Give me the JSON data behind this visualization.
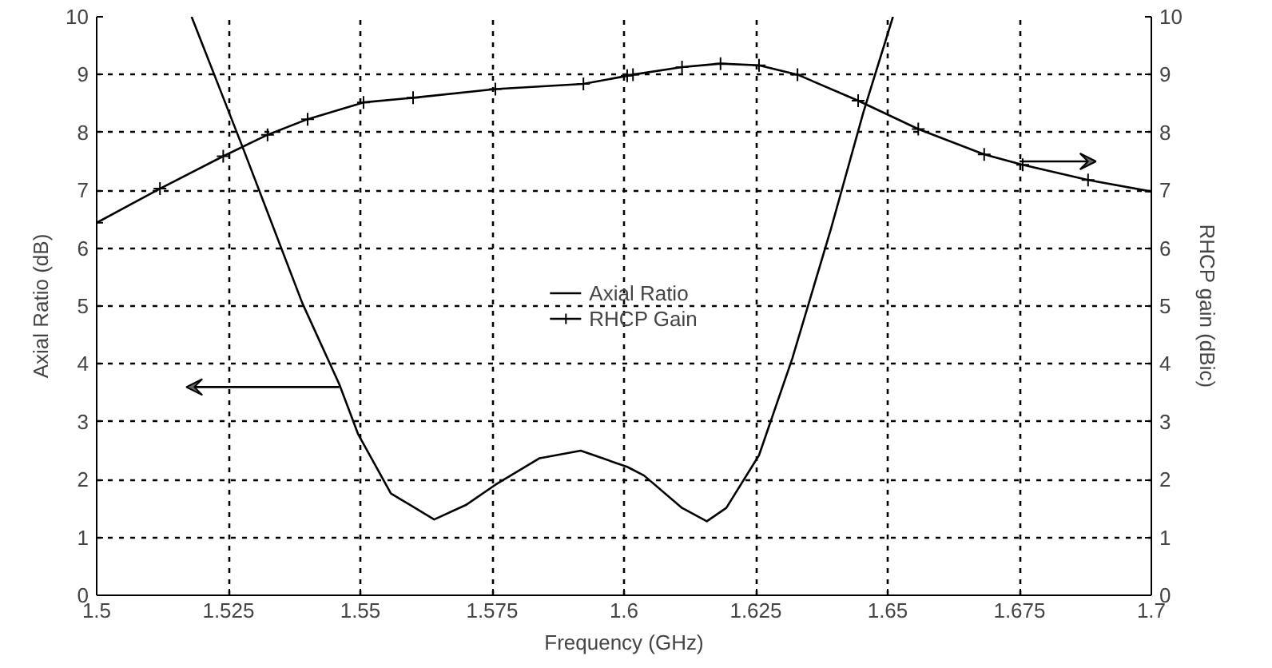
{
  "chart_data": {
    "type": "line",
    "xlabel": "Frequency (GHz)",
    "ylabel": "Axial Ratio (dB)",
    "y2label": "RHCP gain (dBic)",
    "xlim": [
      1.5,
      1.7
    ],
    "xticks": [
      1.5,
      1.525,
      1.55,
      1.575,
      1.6,
      1.625,
      1.65,
      1.675,
      1.7
    ],
    "ylim": [
      0,
      10
    ],
    "yticks": [
      0,
      1,
      2,
      3,
      4,
      5,
      6,
      7,
      8,
      9,
      10
    ],
    "y2lim": [
      0,
      10
    ],
    "y2ticks": [
      0,
      1,
      2,
      3,
      4,
      5,
      6,
      7,
      8,
      9,
      10
    ],
    "grid": true,
    "legend": "center",
    "series": [
      {
        "name": "Axial Ratio",
        "color": "#000000",
        "marker": "none",
        "x": [
          1.518,
          1.5277,
          1.539,
          1.546,
          1.5496,
          1.5558,
          1.564,
          1.57,
          1.5756,
          1.584,
          1.5918,
          1.6006,
          1.6038,
          1.611,
          1.6157,
          1.6194,
          1.6256,
          1.6319,
          1.6392,
          1.6454,
          1.651
        ],
        "values": [
          10,
          7.74,
          5.05,
          3.65,
          2.78,
          1.76,
          1.31,
          1.56,
          1.91,
          2.37,
          2.5,
          2.22,
          2.07,
          1.51,
          1.28,
          1.51,
          2.42,
          4.09,
          6.32,
          8.35,
          10
        ]
      },
      {
        "name": "RHCP Gain",
        "color": "#000000",
        "marker": "cross",
        "axis": "y2",
        "x": [
          1.5,
          1.512,
          1.524,
          1.5324,
          1.54,
          1.5506,
          1.56,
          1.5756,
          1.5923,
          1.6006,
          1.6017,
          1.611,
          1.6183,
          1.6256,
          1.6329,
          1.6444,
          1.6558,
          1.6683,
          1.6756,
          1.688,
          1.7
        ],
        "values": [
          6.44,
          7.03,
          7.59,
          7.96,
          8.23,
          8.52,
          8.6,
          8.75,
          8.84,
          8.98,
          9.0,
          9.13,
          9.19,
          9.16,
          9.0,
          8.55,
          8.06,
          7.62,
          7.44,
          7.18,
          6.98
        ]
      }
    ]
  }
}
